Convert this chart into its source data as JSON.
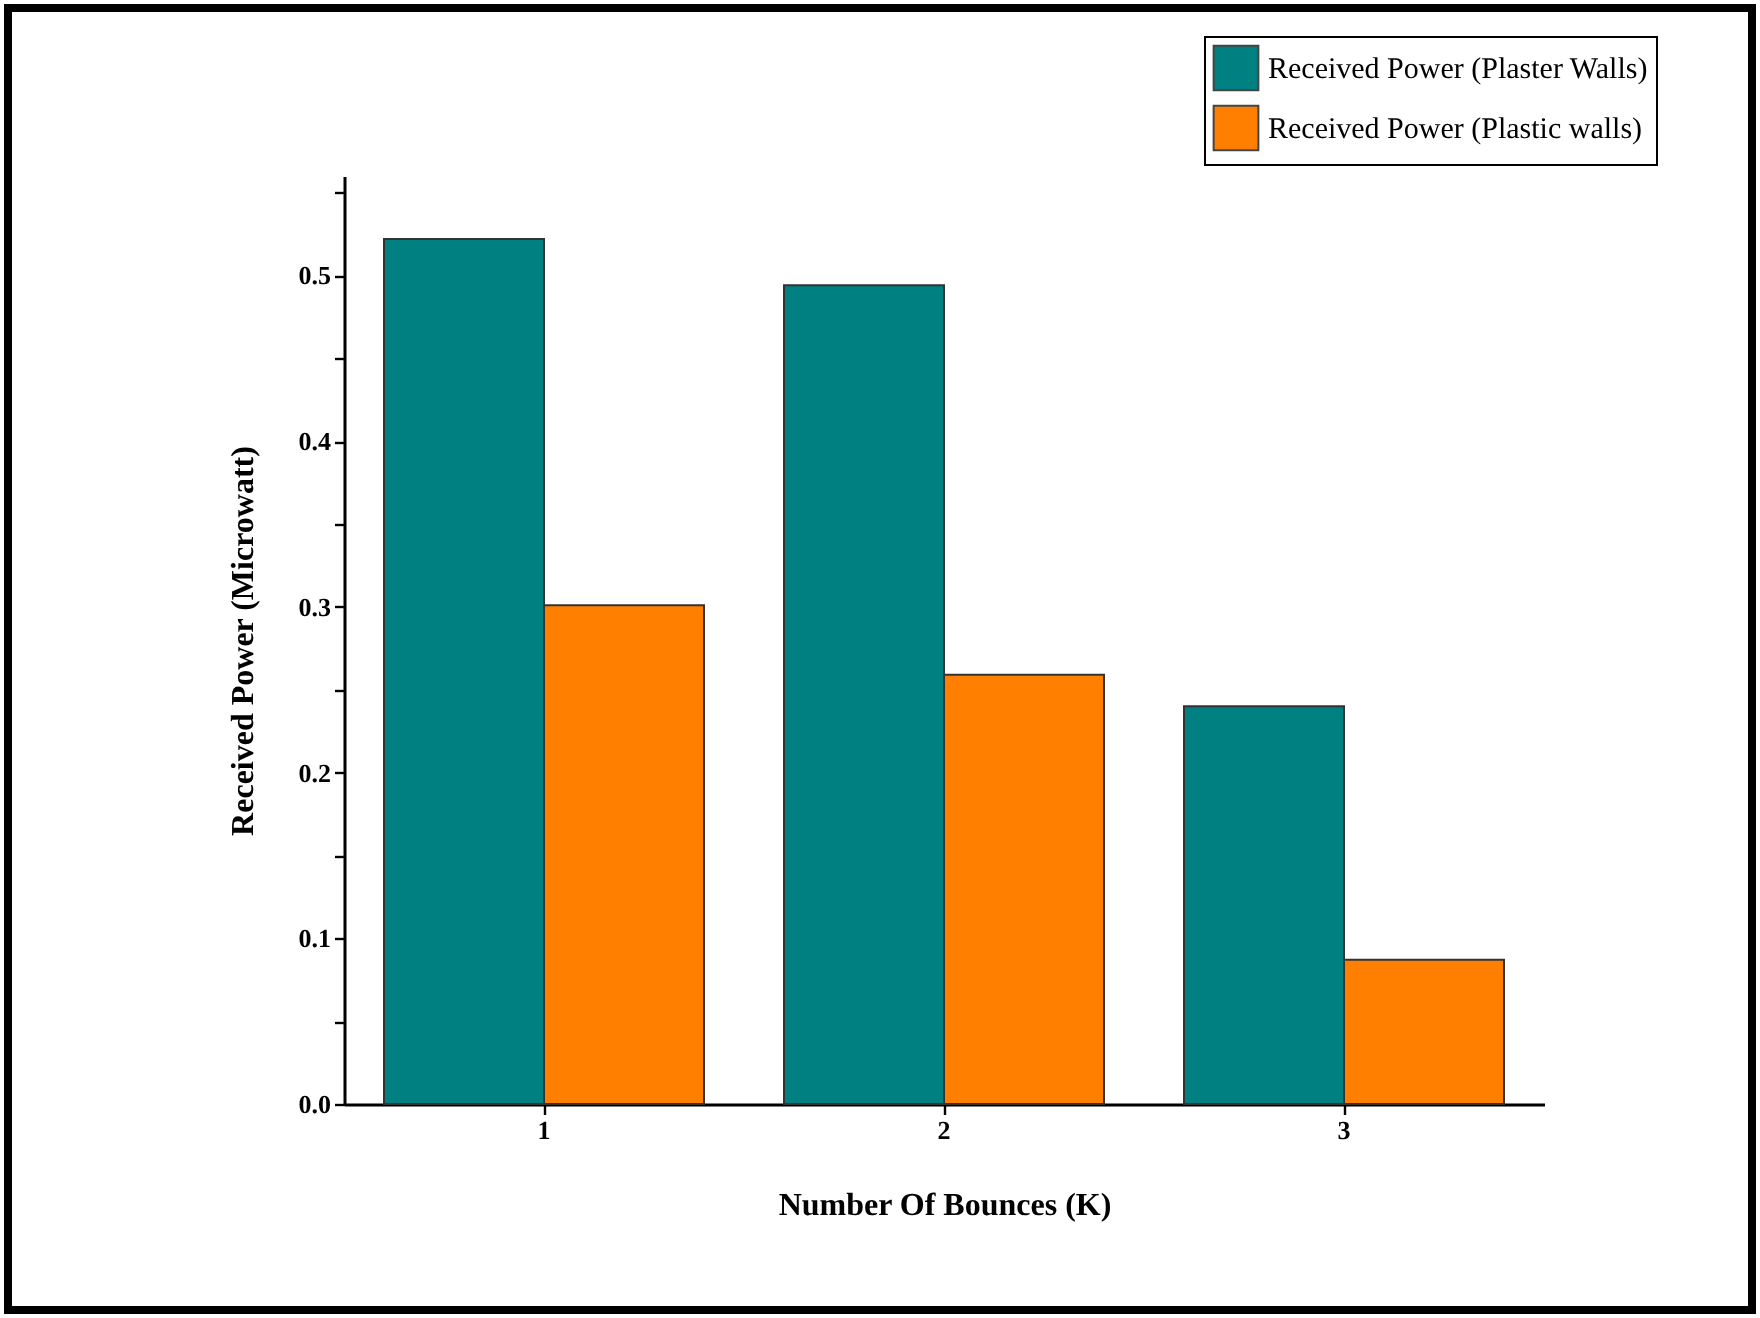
{
  "chart_data": {
    "type": "bar",
    "xlabel": "Number Of Bounces (K)",
    "ylabel": "Received Power (Microwatt)",
    "categories": [
      "1",
      "2",
      "3"
    ],
    "series": [
      {
        "name": "Received Power (Plaster Walls)",
        "color": "#008080",
        "values": [
          0.522,
          0.494,
          0.24
        ]
      },
      {
        "name": "Received Power (Plastic walls)",
        "color": "#ff8000",
        "values": [
          0.301,
          0.259,
          0.087
        ]
      }
    ],
    "ylim": [
      0,
      0.56
    ],
    "yticks": [
      {
        "value": 0,
        "label": "0.0"
      },
      {
        "value": 0.05,
        "label": null
      },
      0.1,
      {
        "value": 0.15,
        "label": null
      },
      0.2,
      {
        "value": 0.25,
        "label": null
      },
      0.3,
      {
        "value": 0.35,
        "label": null
      },
      0.4,
      {
        "value": 0.45,
        "label": null
      },
      0.5,
      {
        "value": 0.55,
        "label": null
      }
    ],
    "grid": false,
    "legend": "top right"
  }
}
